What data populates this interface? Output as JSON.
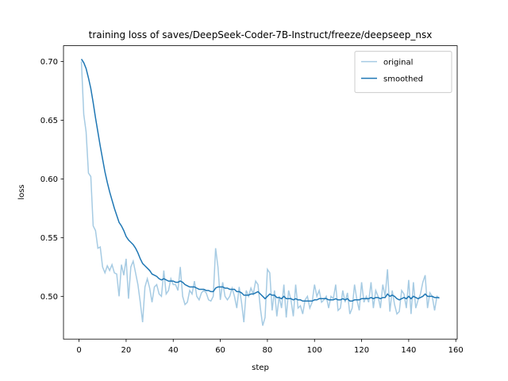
{
  "chart_data": {
    "type": "line",
    "title": "training loss of saves/DeepSeek-Coder-7B-Instruct/freeze/deepseep_nsx",
    "xlabel": "step",
    "ylabel": "loss",
    "x": [
      1,
      2,
      3,
      4,
      5,
      6,
      7,
      8,
      9,
      10,
      11,
      12,
      13,
      14,
      15,
      16,
      17,
      18,
      19,
      20,
      21,
      22,
      23,
      24,
      25,
      26,
      27,
      28,
      29,
      30,
      31,
      32,
      33,
      34,
      35,
      36,
      37,
      38,
      39,
      40,
      41,
      42,
      43,
      44,
      45,
      46,
      47,
      48,
      49,
      50,
      51,
      52,
      53,
      54,
      55,
      56,
      57,
      58,
      59,
      60,
      61,
      62,
      63,
      64,
      65,
      66,
      67,
      68,
      69,
      70,
      71,
      72,
      73,
      74,
      75,
      76,
      77,
      78,
      79,
      80,
      81,
      82,
      83,
      84,
      85,
      86,
      87,
      88,
      89,
      90,
      91,
      92,
      93,
      94,
      95,
      96,
      97,
      98,
      99,
      100,
      101,
      102,
      103,
      104,
      105,
      106,
      107,
      108,
      109,
      110,
      111,
      112,
      113,
      114,
      115,
      116,
      117,
      118,
      119,
      120,
      121,
      122,
      123,
      124,
      125,
      126,
      127,
      128,
      129,
      130,
      131,
      132,
      133,
      134,
      135,
      136,
      137,
      138,
      139,
      140,
      141,
      142,
      143,
      144,
      145,
      146,
      147,
      148,
      149,
      150,
      151,
      152,
      153
    ],
    "series": [
      {
        "name": "original",
        "color": "#a6cbe3",
        "values": [
          0.7,
          0.655,
          0.64,
          0.605,
          0.602,
          0.56,
          0.556,
          0.541,
          0.542,
          0.525,
          0.52,
          0.526,
          0.522,
          0.527,
          0.52,
          0.519,
          0.5,
          0.527,
          0.518,
          0.532,
          0.498,
          0.525,
          0.53,
          0.52,
          0.51,
          0.495,
          0.478,
          0.508,
          0.515,
          0.507,
          0.495,
          0.508,
          0.51,
          0.502,
          0.5,
          0.522,
          0.502,
          0.505,
          0.515,
          0.51,
          0.51,
          0.505,
          0.525,
          0.5,
          0.493,
          0.495,
          0.505,
          0.502,
          0.513,
          0.5,
          0.497,
          0.503,
          0.505,
          0.503,
          0.497,
          0.496,
          0.5,
          0.541,
          0.525,
          0.497,
          0.512,
          0.5,
          0.497,
          0.5,
          0.507,
          0.5,
          0.49,
          0.508,
          0.495,
          0.478,
          0.505,
          0.5,
          0.507,
          0.502,
          0.513,
          0.51,
          0.49,
          0.475,
          0.482,
          0.523,
          0.52,
          0.488,
          0.505,
          0.483,
          0.5,
          0.49,
          0.51,
          0.482,
          0.505,
          0.497,
          0.483,
          0.51,
          0.49,
          0.492,
          0.485,
          0.497,
          0.5,
          0.49,
          0.495,
          0.51,
          0.5,
          0.505,
          0.495,
          0.497,
          0.5,
          0.49,
          0.5,
          0.498,
          0.51,
          0.488,
          0.49,
          0.505,
          0.495,
          0.503,
          0.485,
          0.49,
          0.51,
          0.497,
          0.488,
          0.512,
          0.495,
          0.5,
          0.495,
          0.512,
          0.49,
          0.505,
          0.5,
          0.49,
          0.51,
          0.5,
          0.523,
          0.487,
          0.505,
          0.493,
          0.485,
          0.487,
          0.505,
          0.502,
          0.49,
          0.514,
          0.485,
          0.512,
          0.49,
          0.497,
          0.502,
          0.512,
          0.518,
          0.49,
          0.503,
          0.5,
          0.488,
          0.5,
          0.498
        ]
      },
      {
        "name": "smoothed",
        "color": "#1f77b4",
        "values": [
          0.702,
          0.699,
          0.694,
          0.686,
          0.677,
          0.665,
          0.652,
          0.64,
          0.628,
          0.617,
          0.606,
          0.597,
          0.589,
          0.582,
          0.575,
          0.569,
          0.563,
          0.56,
          0.556,
          0.551,
          0.548,
          0.546,
          0.544,
          0.541,
          0.537,
          0.532,
          0.528,
          0.526,
          0.524,
          0.522,
          0.519,
          0.518,
          0.517,
          0.515,
          0.514,
          0.515,
          0.514,
          0.513,
          0.513,
          0.513,
          0.512,
          0.512,
          0.513,
          0.512,
          0.51,
          0.509,
          0.508,
          0.508,
          0.508,
          0.507,
          0.506,
          0.506,
          0.506,
          0.505,
          0.505,
          0.504,
          0.504,
          0.507,
          0.508,
          0.508,
          0.508,
          0.507,
          0.507,
          0.506,
          0.506,
          0.506,
          0.504,
          0.504,
          0.503,
          0.501,
          0.501,
          0.501,
          0.502,
          0.502,
          0.503,
          0.504,
          0.502,
          0.5,
          0.498,
          0.5,
          0.502,
          0.501,
          0.501,
          0.499,
          0.499,
          0.498,
          0.5,
          0.498,
          0.498,
          0.498,
          0.497,
          0.498,
          0.497,
          0.497,
          0.496,
          0.496,
          0.496,
          0.496,
          0.496,
          0.497,
          0.497,
          0.498,
          0.498,
          0.498,
          0.498,
          0.497,
          0.497,
          0.497,
          0.498,
          0.497,
          0.497,
          0.498,
          0.497,
          0.498,
          0.496,
          0.496,
          0.497,
          0.497,
          0.497,
          0.498,
          0.498,
          0.498,
          0.498,
          0.499,
          0.498,
          0.499,
          0.499,
          0.498,
          0.499,
          0.499,
          0.502,
          0.5,
          0.501,
          0.5,
          0.498,
          0.497,
          0.498,
          0.499,
          0.498,
          0.5,
          0.498,
          0.5,
          0.499,
          0.498,
          0.499,
          0.5,
          0.502,
          0.5,
          0.5,
          0.5,
          0.499,
          0.499,
          0.499
        ]
      }
    ],
    "xlim": [
      -6.6,
      160.6
    ],
    "xticks": [
      0,
      20,
      40,
      60,
      80,
      100,
      120,
      140,
      160
    ],
    "ylim": [
      0.4636,
      0.7134
    ],
    "yticks": [
      {
        "value": 0.5,
        "label": "0.50"
      },
      0.55,
      {
        "value": 0.6,
        "label": "0.60"
      },
      0.65,
      {
        "value": 0.7,
        "label": "0.70"
      }
    ],
    "legend": "upper right"
  }
}
